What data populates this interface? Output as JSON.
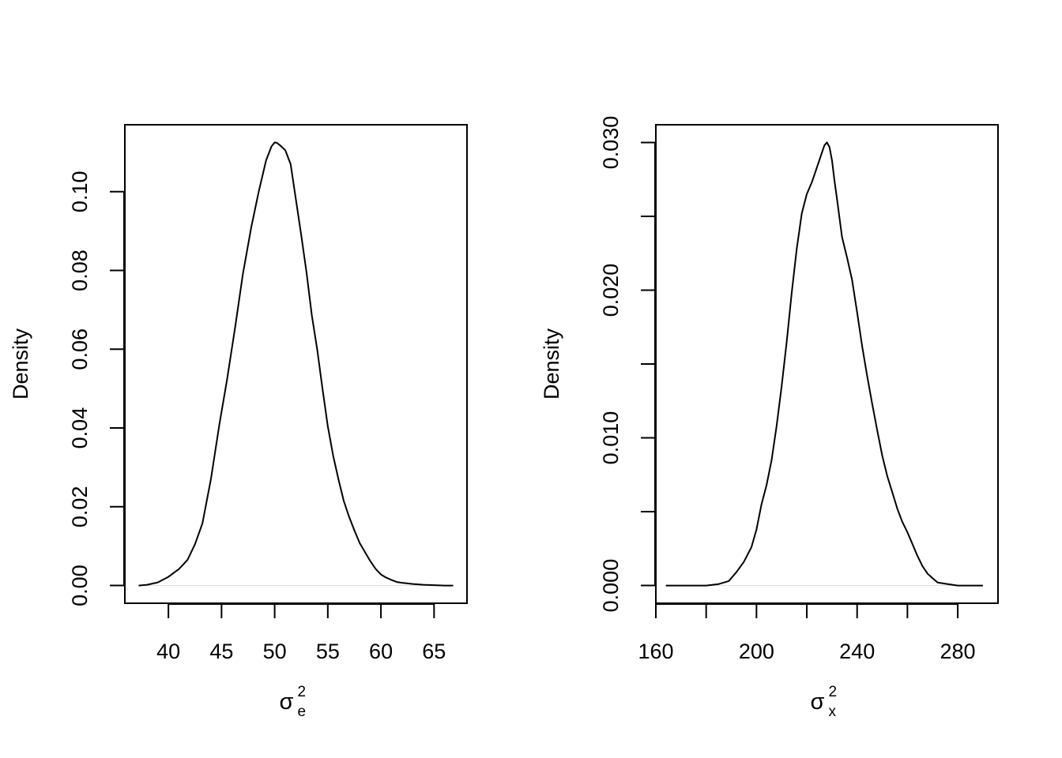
{
  "chart_data": [
    {
      "type": "line",
      "title": "",
      "xlabel": {
        "symbol": "σ",
        "superscript": "2",
        "subscript": "e"
      },
      "ylabel": "Density",
      "xlim": [
        35.9,
        68.1
      ],
      "ylim": [
        -0.0045,
        0.117
      ],
      "xticks": [
        40,
        45,
        50,
        55,
        60,
        65
      ],
      "xtick_labels": [
        "40",
        "45",
        "50",
        "55",
        "60",
        "65"
      ],
      "yticks": [
        0.0,
        0.02,
        0.04,
        0.06,
        0.08,
        0.1
      ],
      "ytick_labels": [
        "0.00",
        "0.02",
        "0.04",
        "0.06",
        "0.08",
        "0.10"
      ],
      "baseline": 0,
      "grid": false,
      "series": [
        {
          "x": [
            37.2,
            38.0,
            39.0,
            40.0,
            41.0,
            41.8,
            42.5,
            43.2,
            44.0,
            44.8,
            45.5,
            46.3,
            47.0,
            47.8,
            48.5,
            49.2,
            49.7,
            50.0,
            50.2,
            50.5,
            51.0,
            51.5,
            52.0,
            52.5,
            53.0,
            53.5,
            54.0,
            54.5,
            55.0,
            55.5,
            56.0,
            56.5,
            57.0,
            57.5,
            58.0,
            58.5,
            59.0,
            59.5,
            60.0,
            60.5,
            61.0,
            61.5,
            62.0,
            63.0,
            64.0,
            65.0,
            66.0,
            66.8
          ],
          "y": [
            0.0,
            0.0002,
            0.0008,
            0.0022,
            0.0042,
            0.0065,
            0.0105,
            0.0158,
            0.027,
            0.041,
            0.052,
            0.066,
            0.079,
            0.091,
            0.1,
            0.108,
            0.1115,
            0.1125,
            0.1124,
            0.1118,
            0.1105,
            0.107,
            0.098,
            0.089,
            0.0795,
            0.0685,
            0.06,
            0.05,
            0.0405,
            0.033,
            0.027,
            0.0215,
            0.0175,
            0.014,
            0.0108,
            0.0085,
            0.0062,
            0.0042,
            0.0028,
            0.002,
            0.0014,
            0.0009,
            0.0007,
            0.0004,
            0.0002,
            0.0001,
            0.0,
            0.0
          ]
        }
      ]
    },
    {
      "type": "line",
      "title": "",
      "xlabel": {
        "symbol": "σ",
        "superscript": "2",
        "subscript": "x"
      },
      "ylabel": "Density",
      "xlim": [
        160.0,
        296.0
      ],
      "ylim": [
        -0.0012,
        0.0312
      ],
      "xticks": [
        160,
        180,
        200,
        220,
        240,
        260,
        280
      ],
      "xtick_labels": [
        "160",
        "",
        "200",
        "",
        "240",
        "",
        "280"
      ],
      "yticks": [
        0.0,
        0.005,
        0.01,
        0.015,
        0.02,
        0.025,
        0.03
      ],
      "ytick_labels": [
        "0.000",
        "",
        "0.010",
        "",
        "0.020",
        "",
        "0.030"
      ],
      "baseline": 0,
      "grid": false,
      "series": [
        {
          "x": [
            164.0,
            170.0,
            175.0,
            180.0,
            185.0,
            189.0,
            192.0,
            195.0,
            198.0,
            200.0,
            202.0,
            204.0,
            206.0,
            208.0,
            210.0,
            212.0,
            214.0,
            216.0,
            218.0,
            220.0,
            222.0,
            224.0,
            226.0,
            227.0,
            228.0,
            229.0,
            230.0,
            231.0,
            232.0,
            234.0,
            236.0,
            238.0,
            240.0,
            242.0,
            244.0,
            246.0,
            248.0,
            250.0,
            252.0,
            254.0,
            256.0,
            258.0,
            260.0,
            262.0,
            264.0,
            266.0,
            268.0,
            270.0,
            272.0,
            276.0,
            280.0,
            285.0,
            290.0
          ],
          "y": [
            0.0,
            0.0,
            0.0,
            0.0,
            0.0001,
            0.0003,
            0.0009,
            0.0016,
            0.0026,
            0.0038,
            0.0055,
            0.0068,
            0.0085,
            0.0108,
            0.0135,
            0.0165,
            0.0198,
            0.0228,
            0.0252,
            0.0265,
            0.0273,
            0.0283,
            0.0293,
            0.0298,
            0.03,
            0.0297,
            0.0288,
            0.0274,
            0.0262,
            0.0236,
            0.0222,
            0.0207,
            0.0185,
            0.0162,
            0.0142,
            0.0123,
            0.0105,
            0.0088,
            0.0074,
            0.0063,
            0.0052,
            0.0043,
            0.0036,
            0.0028,
            0.002,
            0.0013,
            0.0008,
            0.0005,
            0.0002,
            0.0001,
            0.0,
            0.0,
            0.0
          ]
        }
      ]
    }
  ]
}
